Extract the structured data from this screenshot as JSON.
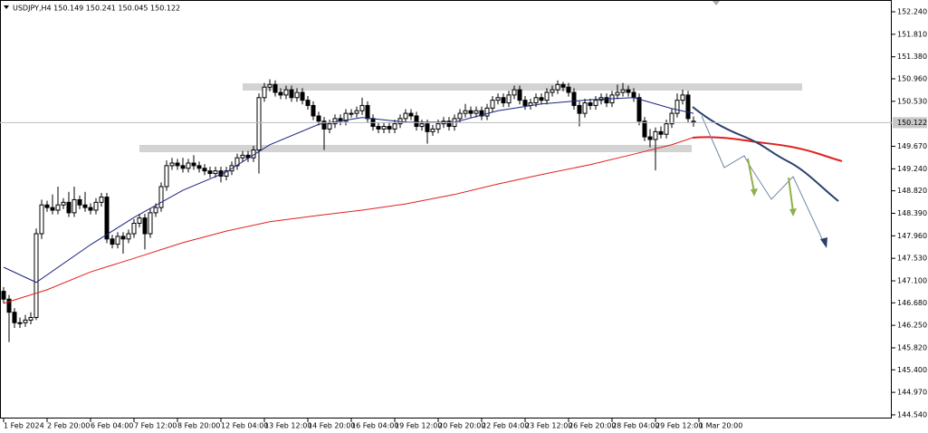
{
  "chart_data": {
    "type": "candlestick",
    "title": "USDJPY,H4  150.149 150.241 150.045 150.122",
    "ylim": [
      144.47,
      152.465
    ],
    "yticks": [
      {
        "value": 152.24,
        "label": "152.240"
      },
      {
        "value": 151.81,
        "label": "151.810"
      },
      {
        "value": 151.38,
        "label": "151.380"
      },
      {
        "value": 150.96,
        "label": "150.960"
      },
      {
        "value": 150.53,
        "label": "150.530"
      },
      {
        "value": 149.67,
        "label": "149.670"
      },
      {
        "value": 149.24,
        "label": "149.240"
      },
      {
        "value": 148.82,
        "label": "148.820"
      },
      {
        "value": 148.39,
        "label": "148.390"
      },
      {
        "value": 147.96,
        "label": "147.960"
      },
      {
        "value": 147.53,
        "label": "147.530"
      },
      {
        "value": 147.1,
        "label": "147.100"
      },
      {
        "value": 146.68,
        "label": "146.680"
      },
      {
        "value": 146.25,
        "label": "146.250"
      },
      {
        "value": 145.82,
        "label": "145.820"
      },
      {
        "value": 145.4,
        "label": "145.400"
      },
      {
        "value": 144.97,
        "label": "144.970"
      },
      {
        "value": 144.54,
        "label": "144.540"
      }
    ],
    "xlim": [
      -0.667,
      163.5
    ],
    "xticks": [
      {
        "value": 0,
        "label": "1 Feb 2024"
      },
      {
        "value": 8,
        "label": "2 Feb 20:00"
      },
      {
        "value": 16,
        "label": "6 Feb 04:00"
      },
      {
        "value": 24,
        "label": "7 Feb 12:00"
      },
      {
        "value": 32,
        "label": "8 Feb 20:00"
      },
      {
        "value": 40,
        "label": "12 Feb 04:00"
      },
      {
        "value": 48,
        "label": "13 Feb 12:00"
      },
      {
        "value": 56,
        "label": "14 Feb 20:00"
      },
      {
        "value": 64,
        "label": "16 Feb 04:00"
      },
      {
        "value": 72,
        "label": "19 Feb 12:00"
      },
      {
        "value": 80,
        "label": "20 Feb 20:00"
      },
      {
        "value": 88,
        "label": "22 Feb 04:00"
      },
      {
        "value": 96,
        "label": "23 Feb 12:00"
      },
      {
        "value": 104,
        "label": "26 Feb 20:00"
      },
      {
        "value": 112,
        "label": "28 Feb 04:00"
      },
      {
        "value": 120,
        "label": "29 Feb 12:00"
      },
      {
        "value": 128,
        "label": "1 Mar 20:00"
      }
    ],
    "current_price": 150.122,
    "open": [
      146.9,
      146.75,
      146.5,
      146.3,
      146.3,
      146.35,
      146.4,
      148.0,
      148.55,
      148.5,
      148.45,
      148.55,
      148.6,
      148.4,
      148.65,
      148.55,
      148.5,
      148.45,
      148.6,
      148.7,
      147.9,
      147.8,
      147.95,
      147.9,
      148.0,
      148.2,
      148.3,
      148.0,
      148.4,
      148.5,
      148.9,
      149.3,
      149.35,
      149.3,
      149.25,
      149.35,
      149.3,
      149.25,
      149.2,
      149.15,
      149.2,
      149.1,
      149.2,
      149.3,
      149.45,
      149.5,
      149.45,
      149.6,
      150.6,
      150.8,
      150.85,
      150.7,
      150.65,
      150.75,
      150.6,
      150.7,
      150.55,
      150.45,
      150.25,
      150.15,
      150.0,
      150.1,
      150.2,
      150.15,
      150.3,
      150.3,
      150.35,
      150.45,
      150.2,
      150.05,
      150.0,
      150.05,
      150.0,
      150.1,
      150.2,
      150.3,
      150.25,
      150.05,
      150.1,
      149.95,
      150.0,
      150.1,
      150.15,
      150.05,
      150.2,
      150.3,
      150.35,
      150.3,
      150.35,
      150.25,
      150.4,
      150.55,
      150.6,
      150.5,
      150.65,
      150.75,
      150.55,
      150.45,
      150.5,
      150.6,
      150.55,
      150.7,
      150.75,
      150.85,
      150.8,
      150.7,
      150.45,
      150.3,
      150.5,
      150.45,
      150.55,
      150.6,
      150.5,
      150.65,
      150.7,
      150.75,
      150.7,
      150.6,
      150.15,
      149.85,
      149.8,
      149.95,
      149.9,
      150.1,
      150.3,
      150.55,
      150.65,
      150.149
    ],
    "high": [
      146.98,
      146.83,
      146.58,
      146.4,
      146.45,
      146.5,
      148.1,
      148.65,
      148.63,
      148.75,
      148.9,
      148.68,
      148.8,
      148.9,
      148.73,
      148.8,
      148.58,
      148.68,
      148.78,
      148.78,
      147.98,
      148.03,
      148.03,
      148.08,
      148.28,
      148.38,
      148.38,
      148.48,
      148.58,
      148.98,
      149.4,
      149.45,
      149.43,
      149.45,
      149.43,
      149.5,
      149.38,
      149.33,
      149.28,
      149.28,
      149.28,
      149.28,
      149.38,
      149.53,
      149.58,
      149.58,
      149.68,
      150.68,
      150.88,
      150.95,
      150.93,
      150.78,
      150.83,
      150.83,
      150.78,
      150.78,
      150.63,
      150.53,
      150.33,
      150.23,
      150.18,
      150.28,
      150.28,
      150.38,
      150.38,
      150.43,
      150.6,
      150.53,
      150.28,
      150.13,
      150.13,
      150.13,
      150.18,
      150.28,
      150.38,
      150.38,
      150.33,
      150.18,
      150.18,
      150.08,
      150.18,
      150.23,
      150.23,
      150.28,
      150.38,
      150.48,
      150.43,
      150.43,
      150.43,
      150.48,
      150.63,
      150.68,
      150.68,
      150.73,
      150.83,
      150.83,
      150.63,
      150.58,
      150.68,
      150.68,
      150.78,
      150.83,
      150.93,
      150.9,
      150.88,
      150.78,
      150.53,
      150.58,
      150.58,
      150.63,
      150.68,
      150.68,
      150.73,
      150.85,
      150.88,
      150.83,
      150.78,
      150.68,
      150.23,
      150.0,
      150.03,
      150.05,
      150.18,
      150.38,
      150.68,
      150.75,
      150.73,
      150.241
    ],
    "low": [
      146.67,
      145.93,
      146.2,
      146.2,
      146.22,
      146.27,
      146.35,
      147.9,
      148.42,
      148.37,
      148.37,
      148.47,
      148.32,
      148.32,
      148.47,
      148.42,
      148.37,
      148.37,
      148.52,
      147.82,
      147.72,
      147.72,
      147.62,
      147.82,
      147.92,
      148.12,
      147.7,
      147.92,
      148.32,
      148.42,
      148.82,
      149.22,
      149.22,
      149.17,
      149.17,
      149.22,
      149.17,
      149.12,
      149.07,
      149.07,
      148.98,
      149.02,
      149.12,
      149.22,
      149.37,
      149.37,
      149.37,
      149.15,
      150.52,
      150.72,
      150.62,
      150.57,
      150.57,
      150.52,
      150.52,
      150.47,
      150.37,
      150.17,
      150.07,
      149.6,
      149.92,
      150.02,
      150.07,
      150.07,
      150.22,
      150.22,
      150.27,
      150.12,
      149.97,
      149.92,
      149.92,
      149.92,
      149.92,
      150.02,
      150.12,
      150.17,
      149.97,
      149.97,
      149.72,
      149.87,
      149.92,
      150.02,
      149.97,
      149.97,
      150.12,
      150.22,
      150.22,
      150.22,
      150.17,
      150.17,
      150.32,
      150.47,
      150.42,
      150.42,
      150.57,
      150.47,
      150.37,
      150.37,
      150.42,
      150.47,
      150.47,
      150.62,
      150.67,
      150.72,
      150.62,
      150.37,
      150.05,
      150.22,
      150.37,
      150.37,
      150.47,
      150.42,
      150.42,
      150.57,
      150.62,
      150.62,
      150.52,
      150.07,
      149.77,
      149.65,
      149.21,
      149.82,
      149.82,
      150.02,
      150.22,
      150.47,
      150.12,
      150.045
    ],
    "close": [
      146.75,
      146.5,
      146.3,
      146.3,
      146.35,
      146.4,
      148.0,
      148.55,
      148.5,
      148.45,
      148.55,
      148.6,
      148.4,
      148.65,
      148.55,
      148.5,
      148.45,
      148.6,
      148.7,
      147.9,
      147.8,
      147.95,
      147.9,
      148.0,
      148.2,
      148.3,
      148.0,
      148.4,
      148.5,
      148.9,
      149.3,
      149.35,
      149.3,
      149.25,
      149.35,
      149.3,
      149.25,
      149.2,
      149.15,
      149.2,
      149.1,
      149.2,
      149.3,
      149.45,
      149.5,
      149.45,
      149.6,
      150.6,
      150.8,
      150.85,
      150.7,
      150.65,
      150.75,
      150.6,
      150.7,
      150.55,
      150.45,
      150.25,
      150.15,
      150.0,
      150.1,
      150.2,
      150.15,
      150.3,
      150.3,
      150.35,
      150.45,
      150.2,
      150.05,
      150.0,
      150.05,
      150.0,
      150.1,
      150.2,
      150.3,
      150.25,
      150.05,
      150.1,
      149.95,
      150.0,
      150.1,
      150.15,
      150.05,
      150.2,
      150.3,
      150.35,
      150.3,
      150.35,
      150.25,
      150.4,
      150.55,
      150.6,
      150.5,
      150.65,
      150.75,
      150.55,
      150.45,
      150.5,
      150.6,
      150.55,
      150.7,
      150.75,
      150.85,
      150.8,
      150.7,
      150.45,
      150.3,
      150.5,
      150.45,
      150.55,
      150.6,
      150.5,
      150.65,
      150.7,
      150.75,
      150.7,
      150.6,
      150.15,
      149.85,
      149.8,
      149.95,
      149.9,
      150.1,
      150.3,
      150.55,
      150.65,
      150.2,
      150.122
    ],
    "lines": [
      {
        "color": "#1a237e",
        "x": [
          0,
          6,
          16,
          24,
          33,
          41,
          49,
          58,
          66,
          74,
          83,
          91,
          99,
          108,
          116,
          123,
          127
        ],
        "values": [
          147.36,
          147.07,
          147.79,
          148.31,
          148.83,
          149.18,
          149.7,
          150.09,
          150.22,
          150.13,
          150.13,
          150.35,
          150.48,
          150.56,
          150.6,
          150.39,
          150.3
        ]
      },
      {
        "color": "#e02020",
        "x": [
          0,
          8,
          16,
          24,
          33,
          41,
          49,
          58,
          66,
          74,
          83,
          91,
          99,
          108,
          116,
          123,
          127
        ],
        "values": [
          146.67,
          146.93,
          147.27,
          147.53,
          147.83,
          148.05,
          148.23,
          148.35,
          148.45,
          148.57,
          148.75,
          148.95,
          149.13,
          149.32,
          149.52,
          149.7,
          149.84
        ]
      }
    ]
  }
}
